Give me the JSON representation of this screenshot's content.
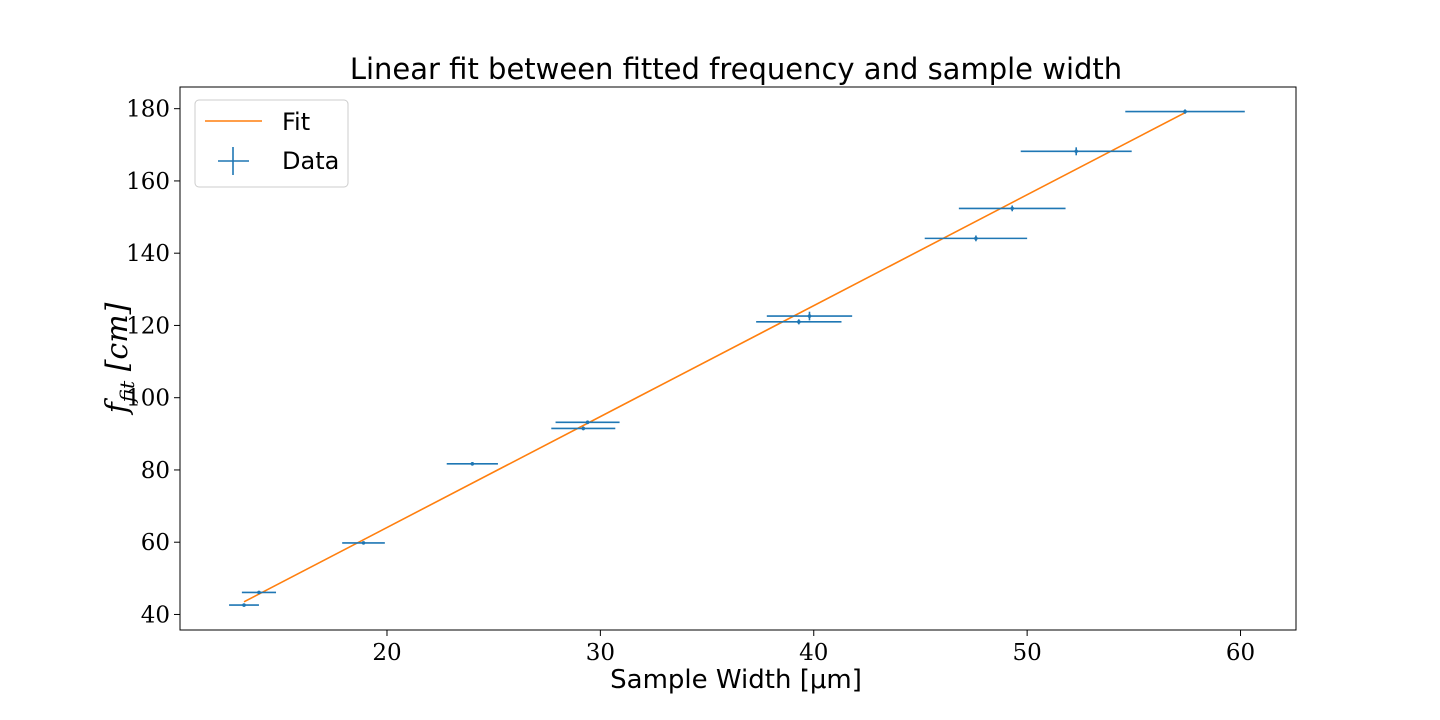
{
  "chart_data": {
    "type": "scatter",
    "title": "Linear fit between fitted frequency and sample width",
    "xlabel": "Sample Width [μm]",
    "ylabel": "f_fit [cm]",
    "ylabel_main": "f",
    "ylabel_sub": "fit",
    "ylabel_unit": " [cm]",
    "xlim": [
      10.3,
      62.6
    ],
    "ylim": [
      35.7,
      186
    ],
    "xticks": [
      20,
      30,
      40,
      50,
      60
    ],
    "yticks": [
      40,
      60,
      80,
      100,
      120,
      140,
      160,
      180
    ],
    "grid": false,
    "legend": {
      "position": "top-left",
      "entries": [
        "Fit",
        "Data"
      ]
    },
    "colors": {
      "fit": "#ff7f0e",
      "data": "#1f77b4"
    },
    "series": [
      {
        "name": "Data",
        "kind": "errorbar",
        "points": [
          {
            "x": 13.3,
            "y": 42.6,
            "xerr": 0.7,
            "yerr": 0.3
          },
          {
            "x": 14.0,
            "y": 46.1,
            "xerr": 0.8,
            "yerr": 0.3
          },
          {
            "x": 18.9,
            "y": 59.8,
            "xerr": 1.0,
            "yerr": 0.4
          },
          {
            "x": 24.0,
            "y": 81.7,
            "xerr": 1.2,
            "yerr": 0.5
          },
          {
            "x": 29.2,
            "y": 91.5,
            "xerr": 1.5,
            "yerr": 0.5
          },
          {
            "x": 29.4,
            "y": 93.2,
            "xerr": 1.5,
            "yerr": 0.5
          },
          {
            "x": 39.3,
            "y": 121.0,
            "xerr": 2.0,
            "yerr": 0.7
          },
          {
            "x": 39.8,
            "y": 122.6,
            "xerr": 2.0,
            "yerr": 1.2
          },
          {
            "x": 47.6,
            "y": 144.1,
            "xerr": 2.4,
            "yerr": 0.8
          },
          {
            "x": 49.3,
            "y": 152.4,
            "xerr": 2.5,
            "yerr": 0.8
          },
          {
            "x": 52.3,
            "y": 168.2,
            "xerr": 2.6,
            "yerr": 1.1
          },
          {
            "x": 57.4,
            "y": 179.2,
            "xerr": 2.8,
            "yerr": 0.6
          }
        ]
      },
      {
        "name": "Fit",
        "kind": "line",
        "x": [
          13.3,
          57.4
        ],
        "y": [
          43.5,
          178.9
        ]
      }
    ]
  }
}
